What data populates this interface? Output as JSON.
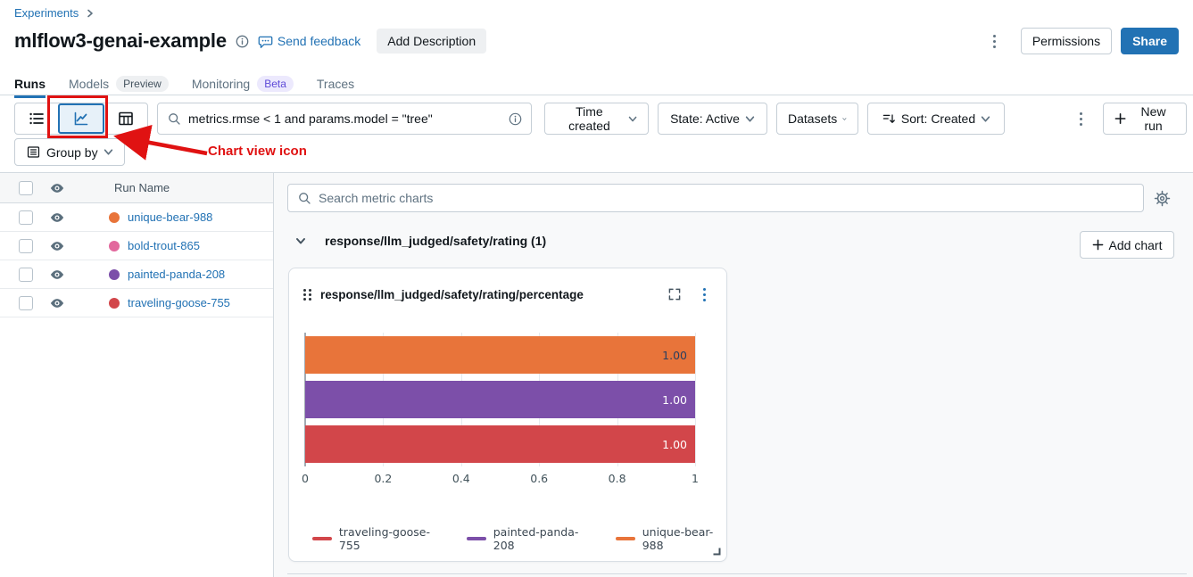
{
  "colors": {
    "accent": "#2272b4",
    "annotation_red": "#e01212",
    "link_blue": "#2272b4",
    "panel_bg": "#f8f9fa",
    "selected_view_bg": "#e7f1f9"
  },
  "breadcrumb": {
    "items": [
      {
        "label": "Experiments"
      }
    ]
  },
  "header": {
    "title": "mlflow3-genai-example",
    "feedback_label": "Send feedback",
    "add_description_label": "Add Description",
    "permissions_label": "Permissions",
    "share_label": "Share"
  },
  "tabs": [
    {
      "label": "Runs",
      "active": true
    },
    {
      "label": "Models",
      "badge": "Preview",
      "badge_bg": "#eef0f2",
      "badge_fg": "#44535f"
    },
    {
      "label": "Monitoring",
      "badge": "Beta",
      "badge_bg": "#ece9fd",
      "badge_fg": "#5f4bd8"
    },
    {
      "label": "Traces"
    }
  ],
  "toolbar": {
    "search_query": "metrics.rmse < 1 and params.model = \"tree\"",
    "filters": [
      "Time created",
      "State: Active",
      "Datasets",
      "Sort: Created"
    ],
    "new_run_label": "New run",
    "group_by_label": "Group by"
  },
  "annotation": {
    "label": "Chart view icon"
  },
  "runs_table": {
    "header": "Run Name",
    "rows": [
      {
        "name": "unique-bear-988",
        "color": "#e8743a"
      },
      {
        "name": "bold-trout-865",
        "color": "#e2689d"
      },
      {
        "name": "painted-panda-208",
        "color": "#7c4fa9"
      },
      {
        "name": "traveling-goose-755",
        "color": "#d2464a"
      }
    ]
  },
  "charts_panel": {
    "search_placeholder": "Search metric charts",
    "section_title": "response/llm_judged/safety/rating (1)",
    "add_chart_label": "Add chart",
    "card_title": "response/llm_judged/safety/rating/percentage"
  },
  "chart_data": {
    "type": "bar",
    "orientation": "horizontal",
    "title": "response/llm_judged/safety/rating/percentage",
    "categories": [
      "unique-bear-988",
      "painted-panda-208",
      "traveling-goose-755"
    ],
    "category_order": "top-to-bottom",
    "values": [
      1.0,
      1.0,
      1.0
    ],
    "value_labels": [
      "1.00",
      "1.00",
      "1.00"
    ],
    "bar_colors": [
      "#e8743a",
      "#7c4fa9",
      "#d2464a"
    ],
    "value_label_colors": [
      "#2a3f5f",
      "#ffffff",
      "#ffffff"
    ],
    "xlabel": "",
    "ylabel": "",
    "xlim": [
      0,
      1
    ],
    "xticks": [
      "0",
      "0.2",
      "0.4",
      "0.6",
      "0.8",
      "1"
    ],
    "grid": true,
    "legend_position": "bottom",
    "legend": [
      {
        "label": "traveling-goose-755",
        "color": "#d2464a"
      },
      {
        "label": "painted-panda-208",
        "color": "#7c4fa9"
      },
      {
        "label": "unique-bear-988",
        "color": "#e8743a"
      }
    ]
  },
  "icons": [
    "info-icon",
    "feedback-bubble-icon",
    "kebab-icon",
    "list-view-icon",
    "chart-view-icon",
    "table-view-icon",
    "search-icon",
    "chevron-down-icon",
    "sort-icon",
    "plus-icon",
    "group-by-icon",
    "eye-icon",
    "gear-icon",
    "drag-handle-icon",
    "expand-icon",
    "resize-corner-icon",
    "chevron-right-icon"
  ]
}
